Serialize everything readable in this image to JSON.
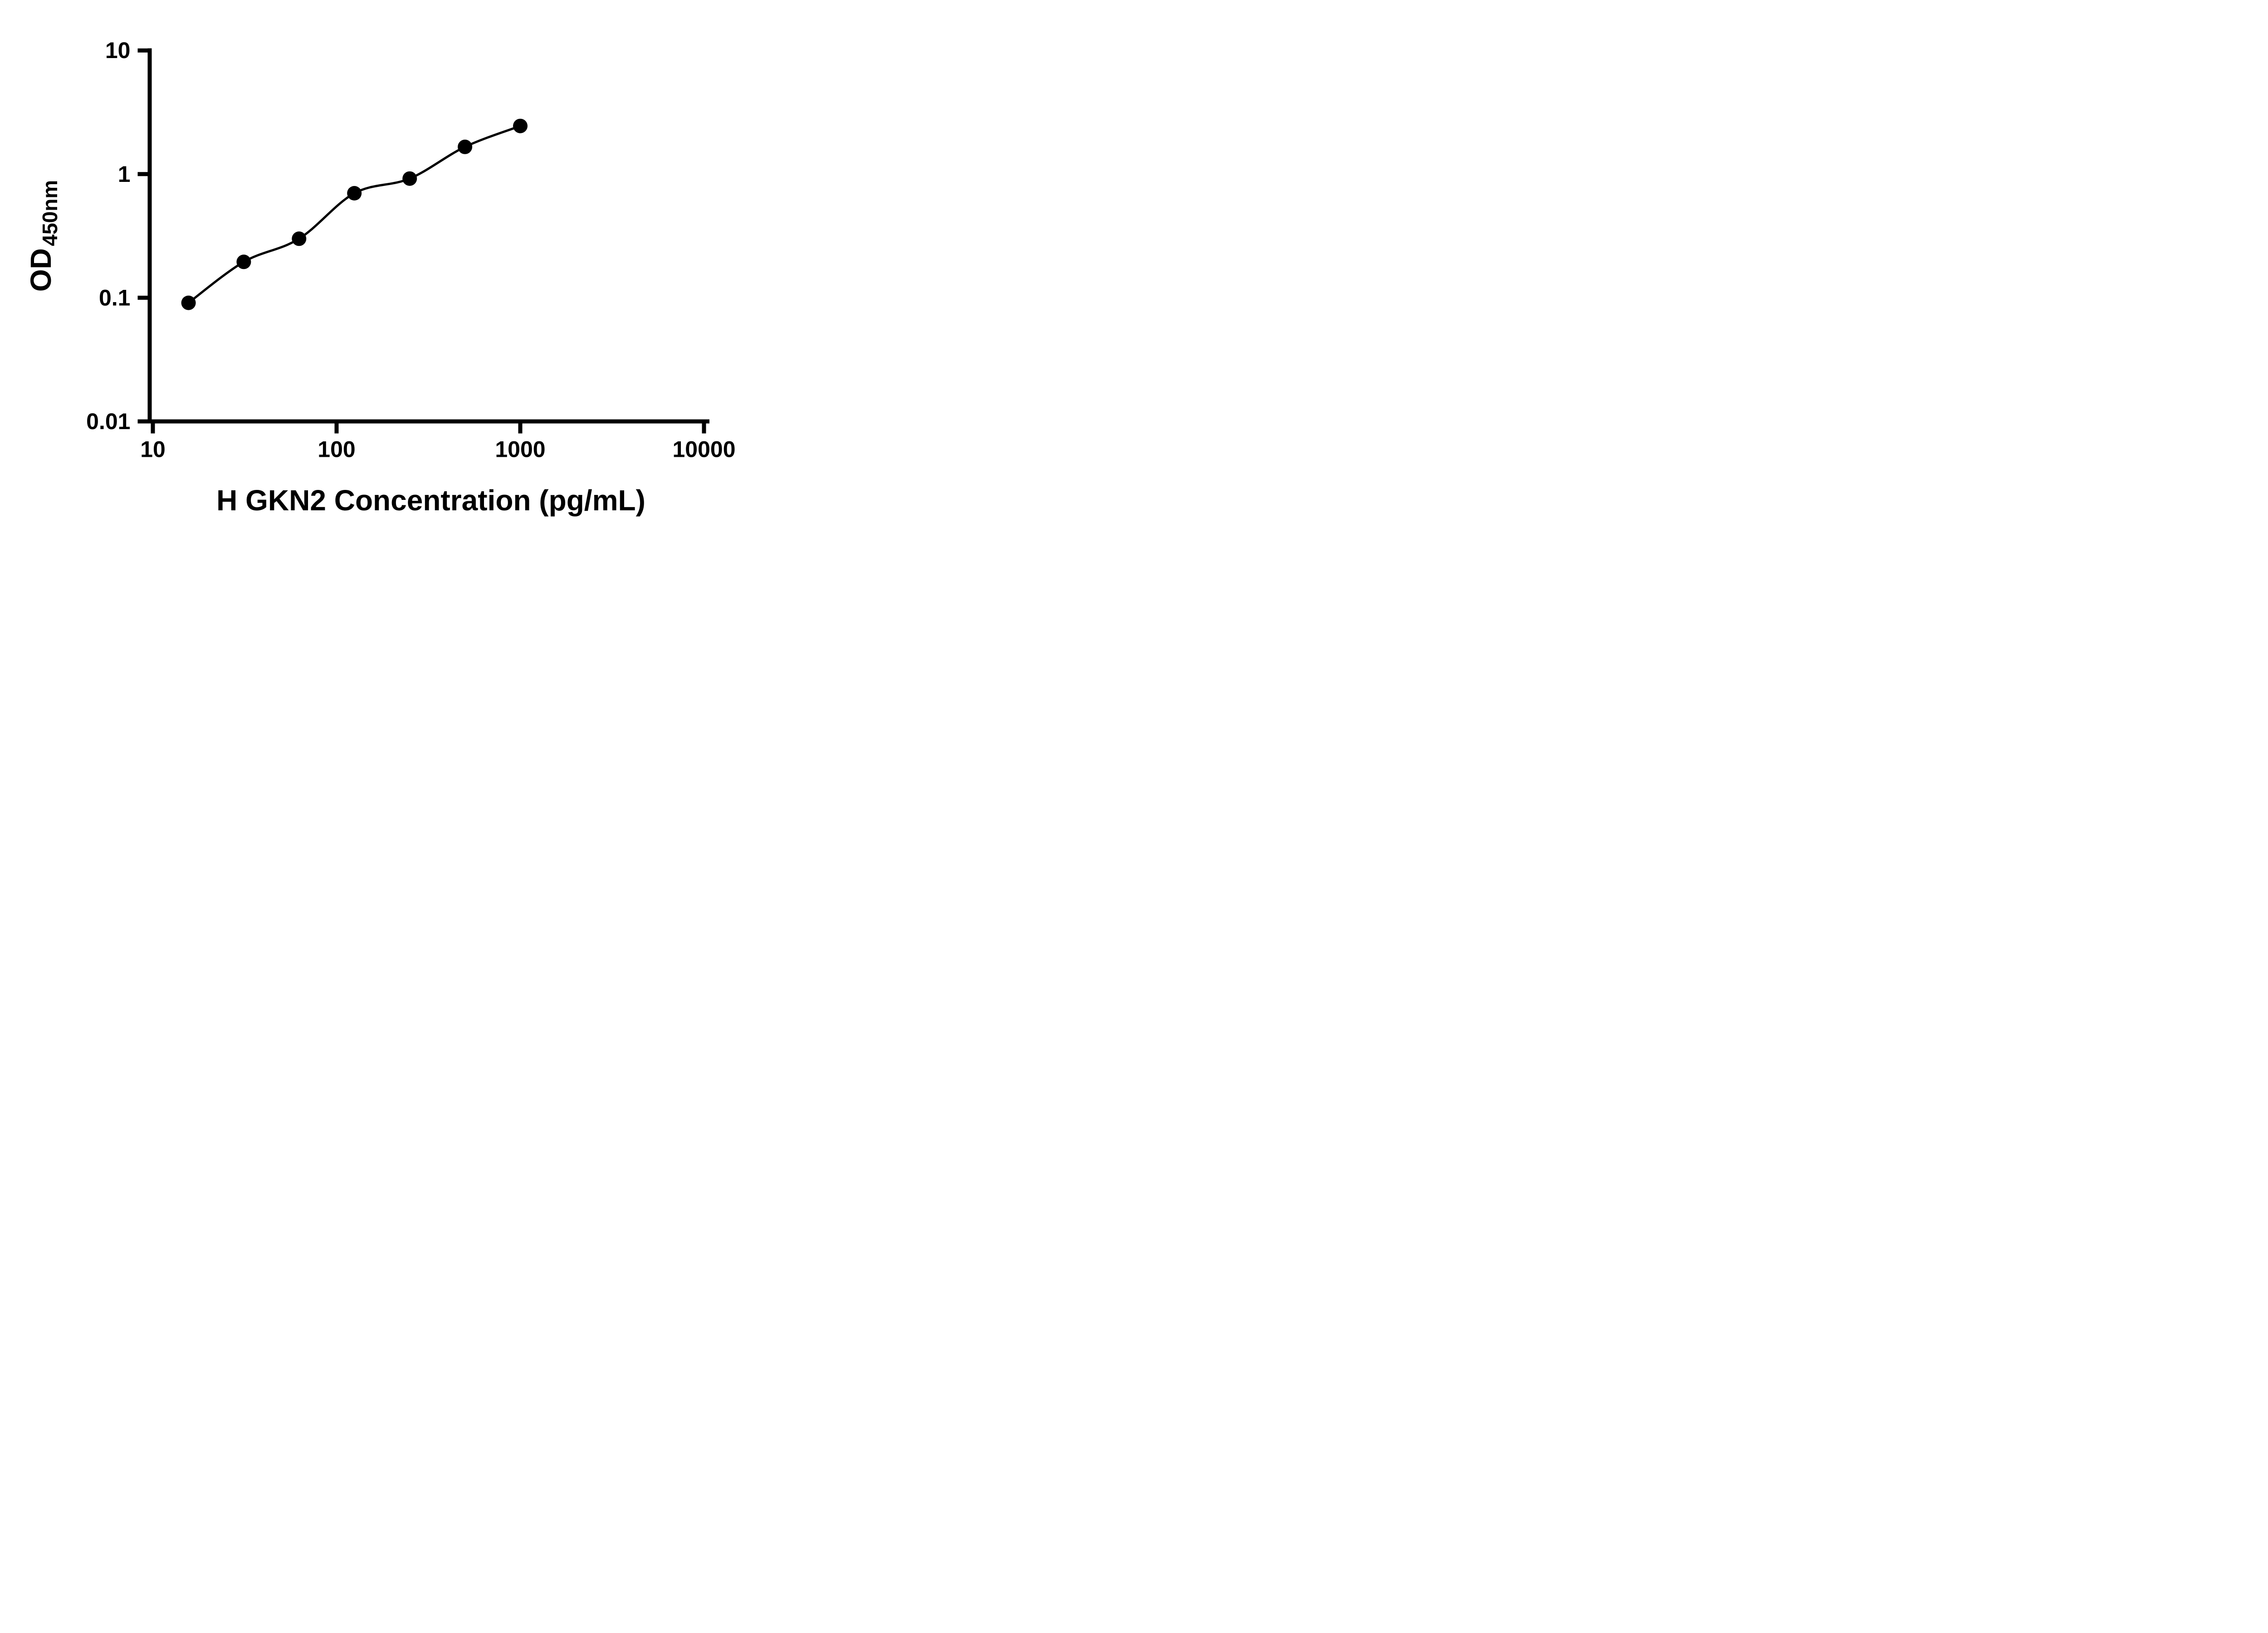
{
  "chart_data": {
    "type": "scatter",
    "title": "",
    "xlabel": "H GKN2 Concentration (pg/mL)",
    "ylabel_main": "OD",
    "ylabel_sub": "450nm",
    "x_scale": "log",
    "y_scale": "log",
    "xlim": [
      10,
      10000
    ],
    "ylim": [
      0.01,
      10
    ],
    "grid": "off",
    "legend": "none",
    "x_ticks": [
      {
        "value": 10,
        "label": "10"
      },
      {
        "value": 100,
        "label": "100"
      },
      {
        "value": 1000,
        "label": "1000"
      },
      {
        "value": 10000,
        "label": "10000"
      }
    ],
    "y_ticks": [
      {
        "value": 10,
        "label": "10"
      },
      {
        "value": 1,
        "label": "1"
      },
      {
        "value": 0.1,
        "label": "0.1"
      },
      {
        "value": 0.01,
        "label": "0.01"
      }
    ],
    "series": [
      {
        "x": [
          15.63,
          31.25,
          62.5,
          125,
          250,
          500,
          1000
        ],
        "y": [
          0.091,
          0.195,
          0.3,
          0.7,
          0.92,
          1.66,
          2.45
        ]
      }
    ],
    "curve": "smooth-fit-through-points",
    "marker_color": "#000000",
    "line_color": "#000000",
    "axis_color": "#000000",
    "background_color": "#ffffff"
  }
}
